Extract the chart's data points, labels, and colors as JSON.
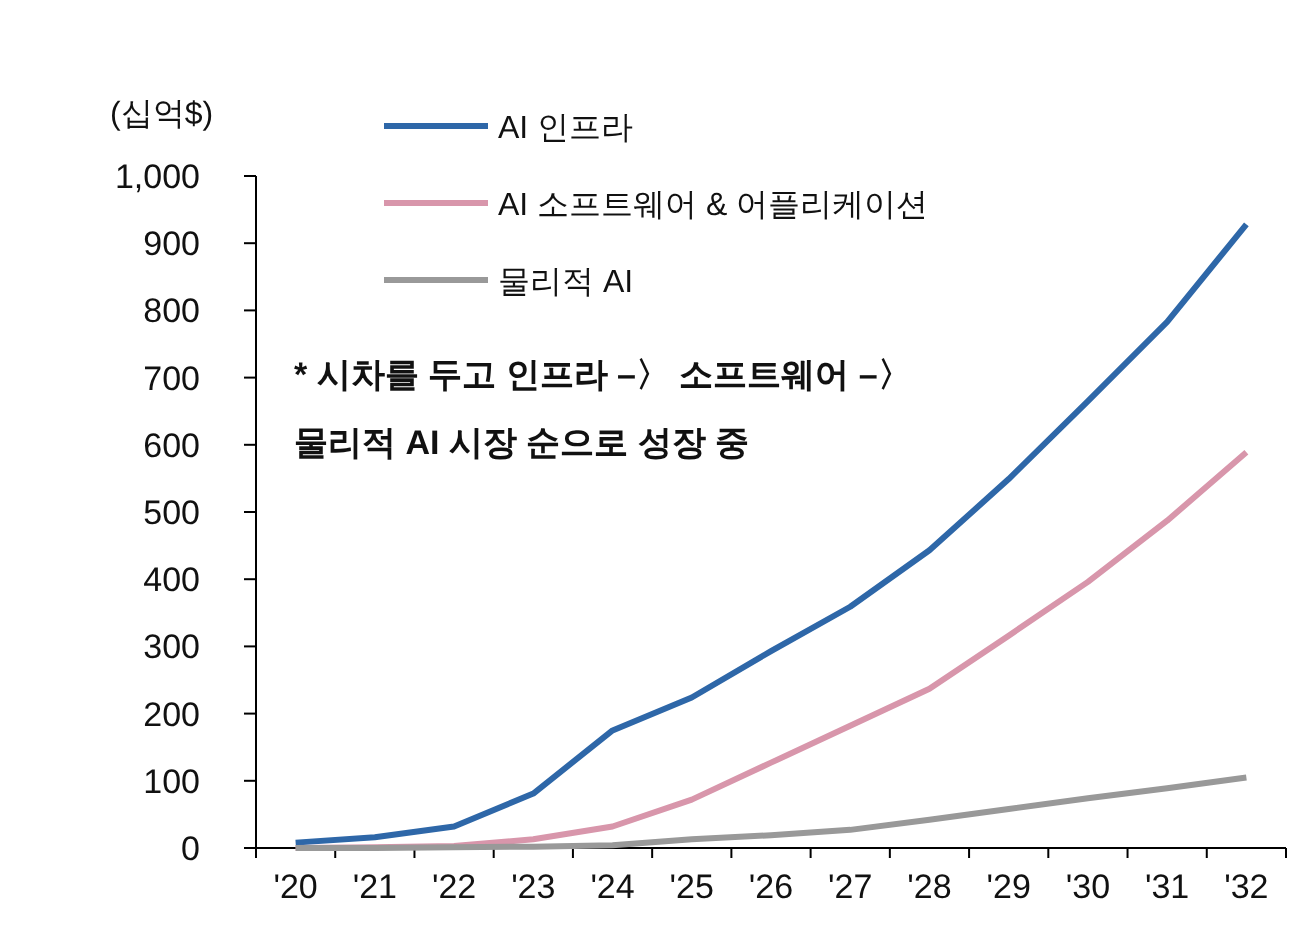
{
  "chart_data": {
    "type": "line",
    "ylabel": "(십억$)",
    "categories": [
      "'20",
      "'21",
      "'22",
      "'23",
      "'24",
      "'25",
      "'26",
      "'27",
      "'28",
      "'29",
      "'30",
      "'31",
      "'32"
    ],
    "series": [
      {
        "name": "AI 인프라",
        "color": "#2e67a8",
        "values": [
          8,
          16,
          32,
          81,
          175,
          224,
          293,
          359,
          443,
          549,
          665,
          783,
          928
        ]
      },
      {
        "name": "AI 소프트웨어 & 어플리케이션",
        "color": "#d896ab",
        "values": [
          0,
          1,
          3,
          13,
          32,
          72,
          127,
          182,
          237,
          316,
          396,
          487,
          589
        ]
      },
      {
        "name": "물리적 AI",
        "color": "#999999",
        "values": [
          0,
          0,
          1,
          2,
          4,
          13,
          19,
          27,
          42,
          58,
          74,
          89,
          105
        ]
      }
    ],
    "ylim": [
      0,
      1000
    ],
    "yticks": [
      {
        "value": 0,
        "label": "0"
      },
      {
        "value": 100,
        "label": "100"
      },
      {
        "value": 200,
        "label": "200"
      },
      {
        "value": 300,
        "label": "300"
      },
      {
        "value": 400,
        "label": "400"
      },
      {
        "value": 500,
        "label": "500"
      },
      {
        "value": 600,
        "label": "600"
      },
      {
        "value": 700,
        "label": "700"
      },
      {
        "value": 800,
        "label": "800"
      },
      {
        "value": 900,
        "label": "900"
      },
      {
        "value": 1000,
        "label": "1,000"
      }
    ],
    "annotations": [
      "* 시차를 두고 인프라 –〉 소프트웨어 –〉",
      "물리적 AI 시장 순으로 성장 중"
    ],
    "legend": "top left",
    "grid": false,
    "marker": "none",
    "line_style": "solid"
  }
}
